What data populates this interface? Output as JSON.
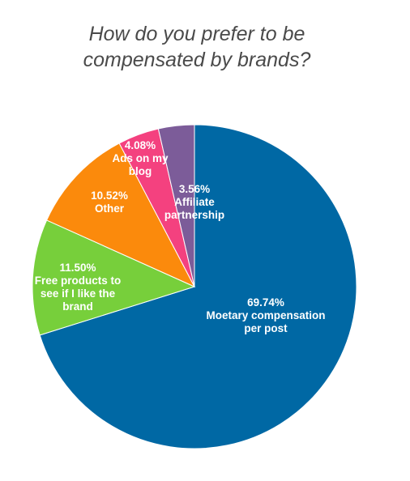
{
  "title_lines": [
    "How do you prefer to be",
    "compensated by brands?"
  ],
  "chart_data": {
    "type": "pie",
    "title": "How do you prefer to be compensated by brands?",
    "start": "top, clockwise",
    "slices": [
      {
        "value": 69.74,
        "pct_label": "69.74%",
        "label_lines": [
          "Moetary compensation",
          "per post"
        ],
        "color": "#0068a4"
      },
      {
        "value": 11.5,
        "pct_label": "11.50%",
        "label_lines": [
          "Free products to",
          "see if I like the",
          "brand"
        ],
        "color": "#77cf3b"
      },
      {
        "value": 10.52,
        "pct_label": "10.52%",
        "label_lines": [
          "Other"
        ],
        "color": "#fb8a0c"
      },
      {
        "value": 4.08,
        "pct_label": "4.08%",
        "label_lines": [
          "Ads on my",
          "blog"
        ],
        "color": "#f4417f"
      },
      {
        "value": 3.56,
        "pct_label": "3.56%",
        "label_lines": [
          "Affiliate",
          "partnership"
        ],
        "color": "#7c5c99"
      }
    ]
  }
}
